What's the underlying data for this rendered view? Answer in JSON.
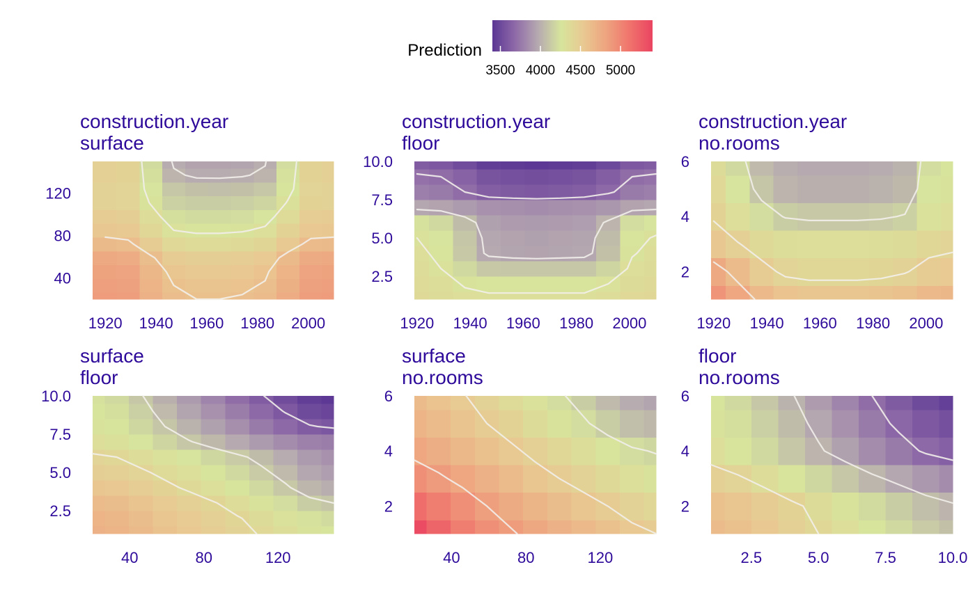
{
  "legend": {
    "title": "Prediction",
    "ticks": [
      3500,
      4000,
      4500,
      5000
    ],
    "range": [
      3400,
      5400
    ],
    "palette": [
      "#5b3794",
      "#8f6aa8",
      "#b6aab0",
      "#d7e59c",
      "#e9c891",
      "#eea37f",
      "#f0736c",
      "#ea4461"
    ]
  },
  "colors": {
    "title_text": "#2e0a9a",
    "axis_text": "#2e0a9a",
    "contour": "#f2efeb"
  },
  "chart_data": [
    {
      "type": "heatmap",
      "title_line1": "construction.year",
      "title_line2": "surface",
      "x_ticks": [
        "1920",
        "1940",
        "1960",
        "1980",
        "2000"
      ],
      "y_ticks": [
        "40",
        "80",
        "120"
      ],
      "x_tick_values": [
        1920,
        1940,
        1960,
        1980,
        2000
      ],
      "y_tick_values": [
        40,
        80,
        120
      ],
      "xlim": [
        1915,
        2010
      ],
      "ylim": [
        20,
        150
      ],
      "x_cells": [
        1920,
        1929,
        1938,
        1947,
        1956,
        1965,
        1974,
        1983,
        1992,
        2001,
        2010
      ],
      "y_cells": [
        20,
        33,
        46,
        59,
        72,
        85,
        98,
        111,
        124,
        137,
        150
      ],
      "values": [
        [
          4870,
          4860,
          4720,
          4630,
          4600,
          4600,
          4610,
          4640,
          4760,
          4860,
          4870
        ],
        [
          4850,
          4840,
          4700,
          4600,
          4570,
          4570,
          4580,
          4610,
          4730,
          4840,
          4850
        ],
        [
          4830,
          4820,
          4680,
          4560,
          4530,
          4530,
          4540,
          4580,
          4700,
          4820,
          4830
        ],
        [
          4780,
          4760,
          4620,
          4500,
          4480,
          4480,
          4490,
          4520,
          4650,
          4770,
          4780
        ],
        [
          4650,
          4630,
          4500,
          4390,
          4370,
          4370,
          4380,
          4410,
          4530,
          4640,
          4650
        ],
        [
          4550,
          4530,
          4400,
          4300,
          4280,
          4280,
          4290,
          4320,
          4430,
          4540,
          4550
        ],
        [
          4500,
          4480,
          4350,
          4230,
          4210,
          4210,
          4220,
          4250,
          4370,
          4490,
          4500
        ],
        [
          4440,
          4420,
          4290,
          4160,
          4140,
          4140,
          4150,
          4180,
          4310,
          4430,
          4440
        ],
        [
          4440,
          4420,
          4250,
          4110,
          4080,
          4070,
          4080,
          4110,
          4260,
          4420,
          4440
        ],
        [
          4460,
          4430,
          4230,
          4020,
          3980,
          3980,
          3990,
          4020,
          4240,
          4430,
          4460
        ],
        [
          4460,
          4430,
          4210,
          3980,
          3940,
          3940,
          3950,
          3990,
          4220,
          4430,
          4460
        ]
      ],
      "contour_levels": [
        4000,
        4300,
        4600
      ]
    },
    {
      "type": "heatmap",
      "title_line1": "construction.year",
      "title_line2": "floor",
      "x_ticks": [
        "1920",
        "1940",
        "1960",
        "1980",
        "2000"
      ],
      "y_ticks": [
        "2.5",
        "5.0",
        "7.5",
        "10.0"
      ],
      "x_tick_values": [
        1920,
        1940,
        1960,
        1980,
        2000
      ],
      "y_tick_values": [
        2.5,
        5,
        7.5,
        10
      ],
      "xlim": [
        1919,
        2010
      ],
      "ylim": [
        1,
        10
      ],
      "x_cells": [
        1920,
        1929,
        1938,
        1947,
        1956,
        1965,
        1974,
        1983,
        1992,
        2001,
        2010
      ],
      "y_cells": [
        1,
        2,
        3,
        4,
        5,
        6,
        7,
        8,
        9,
        10
      ],
      "values": [
        [
          4380,
          4360,
          4330,
          4320,
          4320,
          4320,
          4320,
          4320,
          4350,
          4390,
          4400
        ],
        [
          4370,
          4340,
          4290,
          4270,
          4270,
          4270,
          4270,
          4270,
          4300,
          4360,
          4380
        ],
        [
          4350,
          4300,
          4200,
          4120,
          4110,
          4110,
          4110,
          4110,
          4180,
          4330,
          4360
        ],
        [
          4330,
          4270,
          4120,
          3970,
          3950,
          3940,
          3950,
          3960,
          4080,
          4290,
          4340
        ],
        [
          4300,
          4250,
          4100,
          3960,
          3940,
          3930,
          3940,
          3950,
          4060,
          4270,
          4310
        ],
        [
          4240,
          4200,
          4060,
          3930,
          3910,
          3900,
          3910,
          3920,
          4020,
          4220,
          4250
        ],
        [
          3960,
          3940,
          3900,
          3860,
          3850,
          3840,
          3850,
          3860,
          3880,
          3940,
          3960
        ],
        [
          3780,
          3760,
          3700,
          3620,
          3600,
          3590,
          3600,
          3620,
          3680,
          3760,
          3780
        ],
        [
          3720,
          3700,
          3640,
          3560,
          3540,
          3530,
          3540,
          3560,
          3620,
          3700,
          3720
        ],
        [
          3610,
          3590,
          3520,
          3440,
          3420,
          3410,
          3420,
          3440,
          3500,
          3590,
          3610
        ]
      ],
      "contour_levels": [
        3700,
        4000,
        4300
      ]
    },
    {
      "type": "heatmap",
      "title_line1": "construction.year",
      "title_line2": "no.rooms",
      "x_ticks": [
        "1920",
        "1940",
        "1960",
        "1980",
        "2000"
      ],
      "y_ticks": [
        "2",
        "4",
        "6"
      ],
      "x_tick_values": [
        1920,
        1940,
        1960,
        1980,
        2000
      ],
      "y_tick_values": [
        2,
        4,
        6
      ],
      "xlim": [
        1919,
        2010
      ],
      "ylim": [
        1,
        6
      ],
      "x_cells": [
        1920,
        1929,
        1938,
        1947,
        1956,
        1965,
        1974,
        1983,
        1992,
        2001,
        2010
      ],
      "y_cells": [
        1,
        2,
        3,
        4,
        5,
        6
      ],
      "values": [
        [
          4920,
          4800,
          4660,
          4580,
          4560,
          4560,
          4560,
          4570,
          4600,
          4660,
          4680
        ],
        [
          4780,
          4640,
          4500,
          4420,
          4400,
          4400,
          4400,
          4410,
          4440,
          4500,
          4520
        ],
        [
          4550,
          4460,
          4380,
          4340,
          4330,
          4330,
          4330,
          4340,
          4360,
          4400,
          4420
        ],
        [
          4430,
          4330,
          4220,
          4140,
          4120,
          4120,
          4120,
          4130,
          4160,
          4300,
          4330
        ],
        [
          4390,
          4250,
          4100,
          4020,
          4000,
          4000,
          4000,
          4010,
          4040,
          4250,
          4290
        ],
        [
          4360,
          4200,
          4050,
          3990,
          3970,
          3970,
          3970,
          3980,
          4010,
          4220,
          4260
        ]
      ],
      "contour_levels": [
        4150,
        4450,
        4700
      ]
    },
    {
      "type": "heatmap",
      "title_line1": "surface",
      "title_line2": "floor",
      "x_ticks": [
        "40",
        "80",
        "120"
      ],
      "y_ticks": [
        "2.5",
        "5.0",
        "7.5",
        "10.0"
      ],
      "x_tick_values": [
        40,
        80,
        120
      ],
      "y_tick_values": [
        2.5,
        5,
        7.5,
        10
      ],
      "xlim": [
        20,
        150
      ],
      "ylim": [
        1,
        10
      ],
      "x_cells": [
        20,
        33,
        46,
        59,
        72,
        85,
        98,
        111,
        124,
        137,
        150
      ],
      "y_cells": [
        1,
        2,
        3,
        4,
        5,
        6,
        7,
        8,
        9,
        10
      ],
      "values": [
        [
          4720,
          4700,
          4650,
          4590,
          4540,
          4490,
          4440,
          4390,
          4340,
          4290,
          4260
        ],
        [
          4700,
          4680,
          4620,
          4560,
          4510,
          4460,
          4410,
          4360,
          4300,
          4240,
          4210
        ],
        [
          4640,
          4620,
          4570,
          4510,
          4460,
          4410,
          4350,
          4290,
          4220,
          4140,
          4100
        ],
        [
          4560,
          4540,
          4490,
          4430,
          4380,
          4320,
          4260,
          4200,
          4120,
          4030,
          3990
        ],
        [
          4480,
          4460,
          4420,
          4370,
          4320,
          4260,
          4200,
          4130,
          4050,
          3960,
          3920
        ],
        [
          4420,
          4400,
          4350,
          4300,
          4250,
          4190,
          4130,
          4060,
          3980,
          3900,
          3860
        ],
        [
          4330,
          4310,
          4250,
          4180,
          4110,
          4040,
          3970,
          3900,
          3840,
          3790,
          3770
        ],
        [
          4290,
          4260,
          4190,
          4100,
          4010,
          3930,
          3850,
          3760,
          3680,
          3610,
          3580
        ],
        [
          4260,
          4230,
          4150,
          4050,
          3950,
          3860,
          3770,
          3680,
          3590,
          3510,
          3480
        ],
        [
          4240,
          4200,
          4110,
          4000,
          3900,
          3800,
          3700,
          3610,
          3520,
          3440,
          3410
        ]
      ],
      "contour_levels": [
        3600,
        4100,
        4400
      ]
    },
    {
      "type": "heatmap",
      "title_line1": "surface",
      "title_line2": "no.rooms",
      "x_ticks": [
        "40",
        "80",
        "120"
      ],
      "y_ticks": [
        "2",
        "4",
        "6"
      ],
      "x_tick_values": [
        40,
        80,
        120
      ],
      "y_tick_values": [
        2,
        4,
        6
      ],
      "xlim": [
        20,
        150
      ],
      "ylim": [
        1,
        6
      ],
      "x_cells": [
        20,
        33,
        46,
        59,
        72,
        85,
        98,
        111,
        124,
        137,
        150
      ],
      "y_cells": [
        1,
        2,
        3,
        4,
        5,
        6
      ],
      "values": [
        [
          5350,
          5200,
          5050,
          4950,
          4870,
          4790,
          4720,
          4660,
          4600,
          4540,
          4500
        ],
        [
          5150,
          5050,
          4950,
          4850,
          4770,
          4690,
          4620,
          4560,
          4500,
          4440,
          4400
        ],
        [
          4950,
          4880,
          4800,
          4720,
          4640,
          4560,
          4500,
          4440,
          4380,
          4320,
          4290
        ],
        [
          4800,
          4740,
          4670,
          4600,
          4530,
          4460,
          4400,
          4340,
          4280,
          4220,
          4190
        ],
        [
          4700,
          4640,
          4570,
          4500,
          4430,
          4360,
          4290,
          4220,
          4140,
          4070,
          4040
        ],
        [
          4640,
          4580,
          4510,
          4440,
          4370,
          4300,
          4220,
          4140,
          4050,
          3980,
          3950
        ]
      ],
      "contour_levels": [
        4200,
        4500,
        4850
      ]
    },
    {
      "type": "heatmap",
      "title_line1": "floor",
      "title_line2": "no.rooms",
      "x_ticks": [
        "2.5",
        "5.0",
        "7.5",
        "10.0"
      ],
      "y_ticks": [
        "2",
        "4",
        "6"
      ],
      "x_tick_values": [
        2.5,
        5,
        7.5,
        10
      ],
      "y_tick_values": [
        2,
        4,
        6
      ],
      "xlim": [
        1,
        10
      ],
      "ylim": [
        1,
        6
      ],
      "x_cells": [
        1,
        2,
        3,
        4,
        5,
        6,
        7,
        8,
        9,
        10
      ],
      "y_cells": [
        1,
        2,
        3,
        4,
        5,
        6
      ],
      "values": [
        [
          4640,
          4600,
          4540,
          4470,
          4400,
          4330,
          4260,
          4200,
          4130,
          4080
        ],
        [
          4600,
          4560,
          4500,
          4430,
          4360,
          4290,
          4210,
          4140,
          4070,
          4020
        ],
        [
          4470,
          4420,
          4350,
          4270,
          4190,
          4110,
          4030,
          3960,
          3890,
          3840
        ],
        [
          4330,
          4270,
          4200,
          4110,
          4020,
          3930,
          3840,
          3760,
          3680,
          3630
        ],
        [
          4290,
          4230,
          4150,
          4060,
          3960,
          3860,
          3760,
          3670,
          3590,
          3540
        ],
        [
          4260,
          4200,
          4110,
          4010,
          3910,
          3800,
          3700,
          3600,
          3510,
          3450
        ]
      ],
      "contour_levels": [
        3700,
        4000,
        4400
      ]
    }
  ]
}
